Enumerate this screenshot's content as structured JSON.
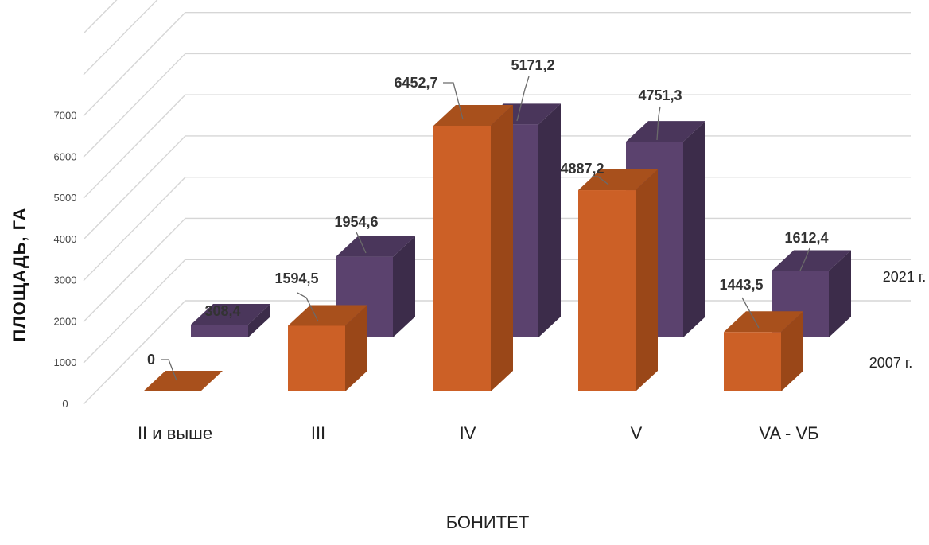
{
  "chart_data": {
    "type": "bar",
    "xlabel": "БОНИТЕТ",
    "ylabel": "ПЛОЩАДЬ, ГА",
    "categories": [
      "II и выше",
      "III",
      "IV",
      "V",
      "VA - VБ"
    ],
    "series": [
      {
        "name": "2007 г.",
        "values": [
          0,
          1594.5,
          6452.7,
          4887.2,
          1443.5
        ],
        "labels": [
          "0",
          "1594,5",
          "6452,7",
          "4887,2",
          "1443,5"
        ]
      },
      {
        "name": "2021 г.",
        "values": [
          308.4,
          1954.6,
          5171.2,
          4751.3,
          1612.4
        ],
        "labels": [
          "308,4",
          "1954,6",
          "5171,2",
          "4751,3",
          "1612,4"
        ]
      }
    ],
    "ylim": [
      0,
      7000
    ],
    "yticks": [
      "0",
      "1000",
      "2000",
      "3000",
      "4000",
      "5000",
      "6000",
      "7000"
    ],
    "grid": true,
    "projection": "3d",
    "colors": {
      "2007": {
        "front": "#cc6026",
        "side": "#9a4718",
        "top": "#a8501c"
      },
      "2021": {
        "front": "#5b426e",
        "side": "#3c2c4a",
        "top": "#4a365b"
      },
      "grid": "#d6d6d6",
      "leader": "#6a6a6a"
    }
  }
}
